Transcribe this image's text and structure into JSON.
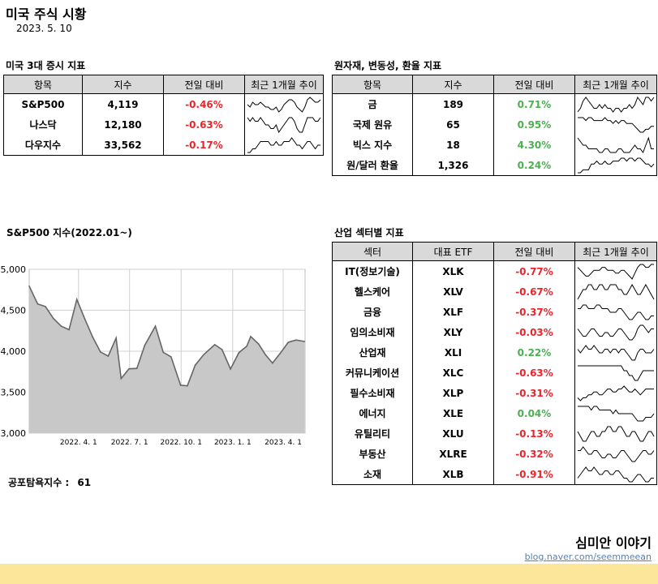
{
  "header": {
    "title": "미국 주식 시황",
    "date": "2023. 5. 10"
  },
  "colors": {
    "negative": "#e8242c",
    "positive": "#4caf50",
    "header_bg": "#d9d9d9",
    "footer": "#fce69a",
    "area_fill": "#c8c8c8",
    "area_line": "#666666"
  },
  "indices": {
    "title": "미국 3대 증시 지표",
    "headers": [
      "항목",
      "지수",
      "전일 대비",
      "최근 1개월 추이"
    ],
    "rows": [
      {
        "name": "S&P500",
        "value": "4,119",
        "change": "-0.46%",
        "spark": [
          4,
          3,
          5,
          4,
          4,
          5,
          4,
          3,
          3,
          2,
          2,
          3,
          1,
          2,
          4,
          5,
          6,
          6,
          5,
          3,
          2,
          1,
          3,
          6,
          7,
          6,
          5,
          5,
          6
        ]
      },
      {
        "name": "나스닥",
        "value": "12,180",
        "change": "-0.63%",
        "spark": [
          6,
          5,
          6,
          5,
          5,
          6,
          5,
          4,
          4,
          3,
          3,
          4,
          2,
          3,
          4,
          5,
          6,
          6,
          5,
          3,
          2,
          2,
          4,
          6,
          6,
          6,
          5,
          5,
          6
        ]
      },
      {
        "name": "다우지수",
        "value": "33,562",
        "change": "-0.17%",
        "spark": [
          3,
          3,
          4,
          4,
          5,
          6,
          6,
          6,
          6,
          5,
          5,
          6,
          5,
          5,
          6,
          6,
          6,
          7,
          6,
          5,
          5,
          4,
          5,
          6,
          6,
          5,
          4,
          5,
          5
        ]
      }
    ]
  },
  "commodities": {
    "title": "원자재, 변동성, 환율 지표",
    "headers": [
      "항목",
      "지수",
      "전일 대비",
      "최근 1개월 추이"
    ],
    "rows": [
      {
        "name": "금",
        "value": "189",
        "change": "0.71%",
        "spark": [
          2,
          3,
          5,
          6,
          5,
          4,
          3,
          3,
          4,
          3,
          4,
          3,
          3,
          2,
          3,
          3,
          2,
          3,
          3,
          4,
          3,
          4,
          6,
          5,
          4,
          6,
          6,
          5,
          6
        ]
      },
      {
        "name": "국제 원유",
        "value": "65",
        "change": "0.95%",
        "spark": [
          6,
          6,
          6,
          5,
          6,
          6,
          5,
          5,
          5,
          5,
          6,
          5,
          5,
          4,
          5,
          4,
          5,
          5,
          4,
          4,
          4,
          3,
          2,
          1,
          1,
          2,
          2,
          3,
          3
        ]
      },
      {
        "name": "빅스 지수",
        "value": "18",
        "change": "4.30%",
        "spark": [
          6,
          5,
          4,
          4,
          3,
          3,
          3,
          3,
          2,
          2,
          3,
          3,
          2,
          2,
          2,
          3,
          3,
          2,
          2,
          2,
          3,
          4,
          3,
          3,
          2,
          4,
          6,
          3,
          3
        ]
      },
      {
        "name": "원/달러 환율",
        "value": "1,326",
        "change": "0.24%",
        "spark": [
          1,
          1,
          2,
          2,
          2,
          4,
          4,
          5,
          4,
          4,
          5,
          4,
          4,
          5,
          5,
          5,
          6,
          6,
          5,
          6,
          6,
          5,
          6,
          6,
          5,
          4,
          4,
          3,
          4
        ]
      }
    ]
  },
  "sp500_chart": {
    "title": "S&P500 지수(2022.01~)"
  },
  "chart_data": {
    "type": "area",
    "title": "S&P500 지수(2022.01~)",
    "x": [
      "2022-01-03",
      "2022-01-18",
      "2022-02-01",
      "2022-02-15",
      "2022-03-01",
      "2022-03-15",
      "2022-03-29",
      "2022-04-12",
      "2022-04-26",
      "2022-05-10",
      "2022-05-24",
      "2022-06-07",
      "2022-06-16",
      "2022-06-30",
      "2022-07-14",
      "2022-07-28",
      "2022-08-16",
      "2022-08-30",
      "2022-09-13",
      "2022-09-30",
      "2022-10-12",
      "2022-10-26",
      "2022-11-10",
      "2022-11-30",
      "2022-12-13",
      "2022-12-28",
      "2023-01-12",
      "2023-01-26",
      "2023-02-02",
      "2023-02-16",
      "2023-03-01",
      "2023-03-13",
      "2023-03-27",
      "2023-04-10",
      "2023-04-24",
      "2023-05-09"
    ],
    "values": [
      4795,
      4577,
      4546,
      4401,
      4306,
      4262,
      4632,
      4397,
      4175,
      3991,
      3941,
      4160,
      3666,
      3785,
      3790,
      4072,
      4305,
      3986,
      3932,
      3585,
      3577,
      3830,
      3956,
      4080,
      4020,
      3783,
      3983,
      4060,
      4179,
      4090,
      3951,
      3855,
      3977,
      4109,
      4137,
      4119
    ],
    "xticks": [
      "2022. 4. 1",
      "2022. 7. 1",
      "2022. 10. 1",
      "2023. 1. 1",
      "2023. 4. 1"
    ],
    "yticks": [
      "3,000",
      "3,500",
      "4,000",
      "4,500",
      "5,000"
    ],
    "ylim": [
      3000,
      5000
    ],
    "grid": true
  },
  "fear_greed": {
    "label": "공포탐욕지수 :",
    "value": "61"
  },
  "sectors": {
    "title": "산업 섹터별 지표",
    "headers": [
      "섹터",
      "대표 ETF",
      "전일 대비",
      "최근 1개월 추이"
    ],
    "rows": [
      {
        "name": "IT(정보기술)",
        "etf": "XLK",
        "change": "-0.77%",
        "spark": [
          5,
          4,
          3,
          2,
          2,
          3,
          4,
          4,
          4,
          5,
          5,
          4,
          4,
          4,
          3,
          3,
          4,
          4,
          3,
          2,
          1,
          3,
          5,
          6,
          6,
          5,
          5,
          6,
          6
        ]
      },
      {
        "name": "헬스케어",
        "etf": "XLV",
        "change": "-0.67%",
        "spark": [
          3,
          4,
          5,
          5,
          6,
          6,
          5,
          5,
          6,
          6,
          5,
          5,
          6,
          6,
          6,
          5,
          5,
          4,
          4,
          5,
          6,
          5,
          4,
          4,
          5,
          6,
          5,
          4,
          3
        ]
      },
      {
        "name": "금융",
        "etf": "XLF",
        "change": "-0.37%",
        "spark": [
          5,
          5,
          6,
          6,
          5,
          5,
          5,
          6,
          6,
          5,
          5,
          5,
          4,
          4,
          4,
          5,
          5,
          4,
          3,
          2,
          2,
          3,
          4,
          4,
          3,
          2,
          2,
          3,
          3
        ]
      },
      {
        "name": "임의소비재",
        "etf": "XLY",
        "change": "-0.03%",
        "spark": [
          5,
          4,
          3,
          3,
          4,
          5,
          5,
          4,
          3,
          3,
          4,
          4,
          3,
          3,
          4,
          5,
          5,
          4,
          3,
          2,
          2,
          3,
          5,
          6,
          6,
          5,
          4,
          5,
          5
        ]
      },
      {
        "name": "산업재",
        "etf": "XLI",
        "change": "0.22%",
        "spark": [
          5,
          4,
          5,
          6,
          5,
          5,
          6,
          5,
          4,
          4,
          5,
          5,
          4,
          5,
          5,
          4,
          5,
          5,
          4,
          3,
          2,
          2,
          4,
          5,
          5,
          4,
          4,
          4,
          5
        ]
      },
      {
        "name": "커뮤니케이션",
        "etf": "XLC",
        "change": "-0.63%",
        "spark": [
          6,
          6,
          6,
          6,
          6,
          6,
          6,
          6,
          6,
          6,
          6,
          6,
          6,
          6,
          6,
          6,
          6,
          5,
          5,
          4,
          4,
          3,
          3,
          4,
          5,
          5,
          5,
          5,
          5
        ]
      },
      {
        "name": "필수소비재",
        "etf": "XLP",
        "change": "-0.31%",
        "spark": [
          2,
          1,
          2,
          2,
          3,
          3,
          4,
          4,
          3,
          3,
          4,
          5,
          5,
          4,
          4,
          5,
          5,
          6,
          5,
          4,
          4,
          5,
          4,
          3,
          4,
          5,
          5,
          5,
          5
        ]
      },
      {
        "name": "에너지",
        "etf": "XLE",
        "change": "0.04%",
        "spark": [
          6,
          6,
          6,
          6,
          6,
          5,
          6,
          6,
          5,
          5,
          5,
          5,
          5,
          4,
          5,
          4,
          4,
          4,
          4,
          4,
          4,
          3,
          2,
          2,
          2,
          3,
          3,
          3,
          4
        ]
      },
      {
        "name": "유틸리티",
        "etf": "XLU",
        "change": "-0.13%",
        "spark": [
          5,
          4,
          3,
          3,
          4,
          5,
          5,
          4,
          4,
          5,
          5,
          6,
          6,
          5,
          5,
          6,
          6,
          5,
          4,
          4,
          5,
          5,
          4,
          3,
          3,
          4,
          5,
          5,
          4
        ]
      },
      {
        "name": "부동산",
        "etf": "XLRE",
        "change": "-0.32%",
        "spark": [
          5,
          5,
          6,
          5,
          4,
          4,
          5,
          5,
          4,
          3,
          3,
          4,
          4,
          3,
          3,
          4,
          5,
          5,
          4,
          3,
          2,
          2,
          3,
          4,
          5,
          5,
          4,
          4,
          5
        ]
      },
      {
        "name": "소재",
        "etf": "XLB",
        "change": "-0.91%",
        "spark": [
          3,
          4,
          5,
          6,
          5,
          5,
          6,
          5,
          4,
          4,
          5,
          5,
          4,
          4,
          5,
          5,
          4,
          3,
          3,
          2,
          2,
          3,
          4,
          4,
          3,
          2,
          2,
          3,
          3
        ]
      }
    ]
  },
  "brand": {
    "name": "심미안 이야기",
    "url": "blog.naver.com/seemmeean"
  }
}
